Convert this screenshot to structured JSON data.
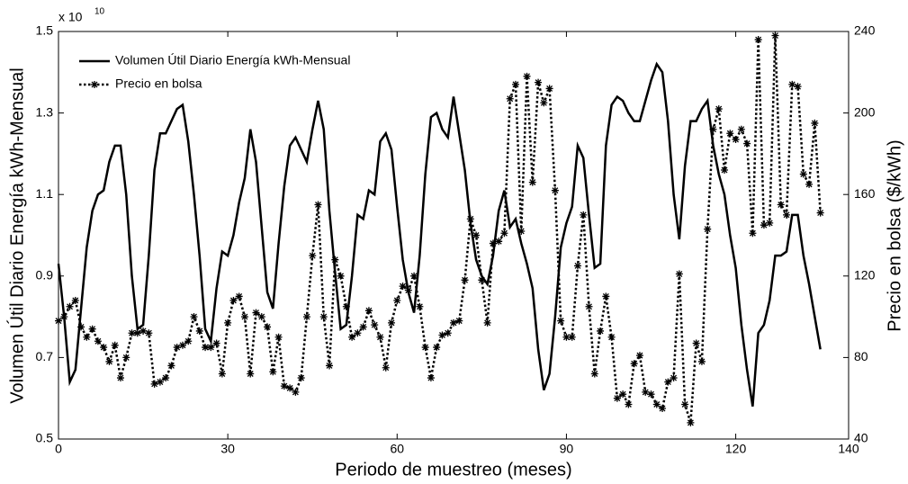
{
  "chart_data": {
    "type": "line",
    "xlabel": "Periodo de muestreo (meses)",
    "ylabel": "Volumen Útil Diario Energía kWh-Mensual",
    "y2label": "Precio en bolsa ($/kWh)",
    "y_scale_label": "x 10",
    "y_scale_exponent": "10",
    "xlim": [
      0,
      140
    ],
    "xticks": [
      0,
      30,
      60,
      90,
      120,
      140
    ],
    "ylim": [
      0.5,
      1.5
    ],
    "yticks": [
      0.5,
      0.7,
      0.9,
      1.1,
      1.3,
      1.5
    ],
    "y2lim": [
      40,
      240
    ],
    "y2ticks": [
      40,
      80,
      120,
      160,
      200,
      240
    ],
    "legend": "upper left",
    "x": [
      0,
      1,
      2,
      3,
      4,
      5,
      6,
      7,
      8,
      9,
      10,
      11,
      12,
      13,
      14,
      15,
      16,
      17,
      18,
      19,
      20,
      21,
      22,
      23,
      24,
      25,
      26,
      27,
      28,
      29,
      30,
      31,
      32,
      33,
      34,
      35,
      36,
      37,
      38,
      39,
      40,
      41,
      42,
      43,
      44,
      45,
      46,
      47,
      48,
      49,
      50,
      51,
      52,
      53,
      54,
      55,
      56,
      57,
      58,
      59,
      60,
      61,
      62,
      63,
      64,
      65,
      66,
      67,
      68,
      69,
      70,
      71,
      72,
      73,
      74,
      75,
      76,
      77,
      78,
      79,
      80,
      81,
      82,
      83,
      84,
      85,
      86,
      87,
      88,
      89,
      90,
      91,
      92,
      93,
      94,
      95,
      96,
      97,
      98,
      99,
      100,
      101,
      102,
      103,
      104,
      105,
      106,
      107,
      108,
      109,
      110,
      111,
      112,
      113,
      114,
      115,
      116,
      117,
      118,
      119,
      120,
      121,
      122,
      123,
      124,
      125,
      126,
      127,
      128,
      129,
      130,
      131,
      132,
      133,
      134,
      135
    ],
    "series": [
      {
        "name": "Volumen Útil Diario Energía kWh-Mensual",
        "color": "#000000",
        "style": "solid",
        "values": [
          0.93,
          0.8,
          0.64,
          0.67,
          0.82,
          0.97,
          1.06,
          1.1,
          1.11,
          1.18,
          1.22,
          1.22,
          1.1,
          0.9,
          0.77,
          0.78,
          0.95,
          1.16,
          1.25,
          1.25,
          1.28,
          1.31,
          1.32,
          1.23,
          1.1,
          0.95,
          0.77,
          0.74,
          0.87,
          0.96,
          0.95,
          1.0,
          1.08,
          1.14,
          1.26,
          1.18,
          1.02,
          0.86,
          0.82,
          0.98,
          1.12,
          1.22,
          1.24,
          1.21,
          1.18,
          1.26,
          1.33,
          1.26,
          1.06,
          0.91,
          0.77,
          0.78,
          0.9,
          1.05,
          1.04,
          1.11,
          1.1,
          1.23,
          1.25,
          1.21,
          1.07,
          0.94,
          0.86,
          0.81,
          0.95,
          1.15,
          1.29,
          1.3,
          1.26,
          1.24,
          1.34,
          1.25,
          1.16,
          1.03,
          0.94,
          0.9,
          0.88,
          0.95,
          1.06,
          1.11,
          1.02,
          1.04,
          0.98,
          0.93,
          0.87,
          0.72,
          0.62,
          0.66,
          0.8,
          0.97,
          1.03,
          1.07,
          1.22,
          1.19,
          1.05,
          0.92,
          0.93,
          1.22,
          1.32,
          1.34,
          1.33,
          1.3,
          1.28,
          1.28,
          1.33,
          1.38,
          1.42,
          1.4,
          1.28,
          1.1,
          0.99,
          1.17,
          1.28,
          1.28,
          1.31,
          1.33,
          1.22,
          1.15,
          1.1,
          1.0,
          0.92,
          0.78,
          0.67,
          0.58,
          0.76,
          0.78,
          0.84,
          0.95,
          0.95,
          0.96,
          1.05,
          1.05,
          0.95,
          0.88,
          0.8,
          0.72
        ]
      },
      {
        "name": "Precio en bolsa",
        "color": "#000000",
        "style": "dotted",
        "axis": "y2",
        "values": [
          98,
          100,
          105,
          108,
          95,
          90,
          94,
          88,
          85,
          78,
          86,
          70,
          80,
          92,
          92,
          93,
          92,
          67,
          68,
          70,
          76,
          85,
          86,
          88,
          100,
          93,
          85,
          85,
          87,
          72,
          97,
          108,
          110,
          100,
          72,
          102,
          100,
          95,
          73,
          90,
          66,
          65,
          63,
          70,
          100,
          130,
          155,
          100,
          76,
          128,
          120,
          105,
          90,
          92,
          95,
          103,
          96,
          90,
          75,
          97,
          108,
          115,
          113,
          120,
          105,
          85,
          70,
          85,
          91,
          92,
          97,
          98,
          118,
          148,
          140,
          118,
          97,
          136,
          137,
          141,
          207,
          214,
          142,
          218,
          166,
          215,
          205,
          212,
          162,
          98,
          90,
          90,
          125,
          150,
          105,
          72,
          93,
          110,
          90,
          60,
          62,
          57,
          77,
          81,
          63,
          62,
          57,
          55,
          68,
          70,
          121,
          57,
          48,
          87,
          78,
          143,
          192,
          202,
          172,
          190,
          187,
          192,
          185,
          141,
          236,
          145,
          146,
          238,
          155,
          150,
          214,
          213,
          170,
          165,
          195,
          151
        ]
      }
    ]
  }
}
